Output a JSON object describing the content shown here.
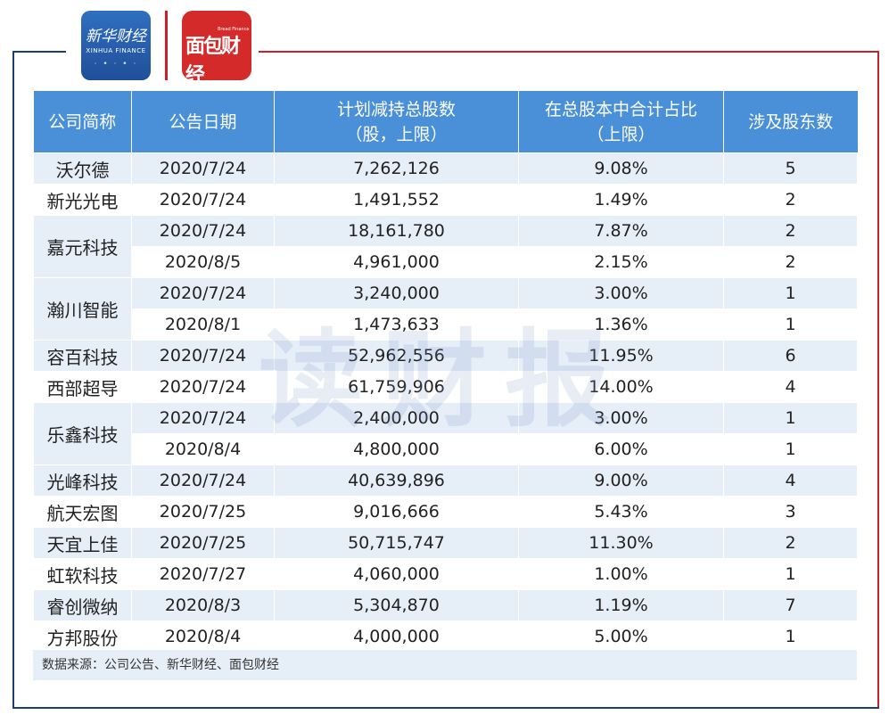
{
  "logos": {
    "xinhua": {
      "brand": "新华财经",
      "sub": "XINHUA FINANCE"
    },
    "mianbao": {
      "brand": "面包财经",
      "sub": "Bread Finance"
    }
  },
  "watermark": "读财报",
  "table": {
    "headers": [
      "公司简称",
      "公告日期",
      "计划减持总股数\n（股，上限）",
      "在总股本中合计占比\n（上限）",
      "涉及股东数"
    ],
    "groups": [
      {
        "company": "沃尔德",
        "rows": [
          [
            "2020/7/24",
            "7,262,126",
            "9.08%",
            "5"
          ]
        ]
      },
      {
        "company": "新光光电",
        "rows": [
          [
            "2020/7/24",
            "1,491,552",
            "1.49%",
            "2"
          ]
        ]
      },
      {
        "company": "嘉元科技",
        "rows": [
          [
            "2020/7/24",
            "18,161,780",
            "7.87%",
            "2"
          ],
          [
            "2020/8/5",
            "4,961,000",
            "2.15%",
            "2"
          ]
        ]
      },
      {
        "company": "瀚川智能",
        "rows": [
          [
            "2020/7/24",
            "3,240,000",
            "3.00%",
            "1"
          ],
          [
            "2020/8/1",
            "1,473,633",
            "1.36%",
            "1"
          ]
        ]
      },
      {
        "company": "容百科技",
        "rows": [
          [
            "2020/7/24",
            "52,962,556",
            "11.95%",
            "6"
          ]
        ]
      },
      {
        "company": "西部超导",
        "rows": [
          [
            "2020/7/24",
            "61,759,906",
            "14.00%",
            "4"
          ]
        ]
      },
      {
        "company": "乐鑫科技",
        "rows": [
          [
            "2020/7/24",
            "2,400,000",
            "3.00%",
            "1"
          ],
          [
            "2020/8/4",
            "4,800,000",
            "6.00%",
            "1"
          ]
        ]
      },
      {
        "company": "光峰科技",
        "rows": [
          [
            "2020/7/24",
            "40,639,896",
            "9.00%",
            "4"
          ]
        ]
      },
      {
        "company": "航天宏图",
        "rows": [
          [
            "2020/7/25",
            "9,016,666",
            "5.43%",
            "3"
          ]
        ]
      },
      {
        "company": "天宜上佳",
        "rows": [
          [
            "2020/7/25",
            "50,715,747",
            "11.30%",
            "2"
          ]
        ]
      },
      {
        "company": "虹软科技",
        "rows": [
          [
            "2020/7/27",
            "4,060,000",
            "1.00%",
            "1"
          ]
        ]
      },
      {
        "company": "睿创微纳",
        "rows": [
          [
            "2020/8/3",
            "5,304,870",
            "1.19%",
            "7"
          ]
        ]
      },
      {
        "company": "方邦股份",
        "rows": [
          [
            "2020/8/4",
            "4,000,000",
            "5.00%",
            "1"
          ]
        ]
      }
    ]
  },
  "source": "数据来源：公司公告、新华财经、面包财经"
}
